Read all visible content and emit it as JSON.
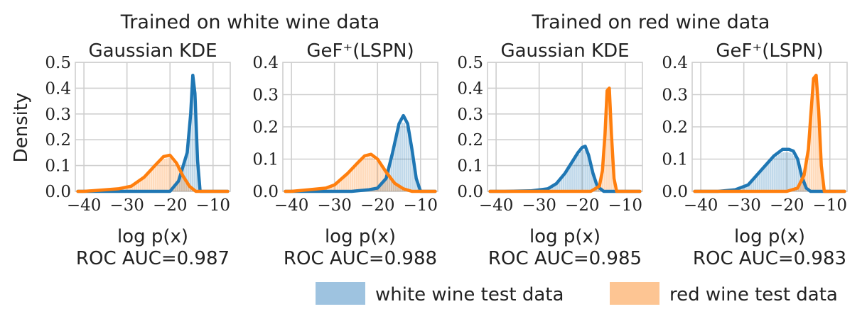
{
  "group_titles": [
    "Trained on white wine data",
    "Trained on red wine data"
  ],
  "ylabel": "Density",
  "legend": {
    "placement": "bottom-right",
    "items": [
      {
        "label": "white wine test data",
        "color": "#9ec3e0"
      },
      {
        "label": "red wine test data",
        "color": "#fdc593"
      }
    ]
  },
  "colors": {
    "white": "#1f77b4",
    "red": "#ff7f0e",
    "grid": "#cfcfcf"
  },
  "chart_data": [
    {
      "type": "area",
      "title": "Gaussian KDE",
      "xlabel": "log p(x)",
      "subtitle": "ROC AUC=0.987",
      "xlim": [
        -42,
        -6
      ],
      "ylim": [
        0,
        0.5
      ],
      "xticks": [
        -40,
        -30,
        -20,
        -10
      ],
      "yticks": [
        0,
        0.1,
        0.2,
        0.3,
        0.4,
        0.5
      ],
      "ytick_labels": [
        "0.0",
        "0.1",
        "0.2",
        "0.3",
        "0.4",
        "0.5"
      ],
      "series": [
        {
          "name": "white wine test data",
          "x": [
            -20,
            -18,
            -16,
            -15.2,
            -14.7,
            -14.2,
            -13.6,
            -13
          ],
          "y": [
            0,
            0.04,
            0.15,
            0.3,
            0.45,
            0.38,
            0.12,
            0
          ]
        },
        {
          "name": "red wine test data",
          "x": [
            -40,
            -36,
            -32,
            -29,
            -26,
            -23.5,
            -21.5,
            -20,
            -18.5,
            -17,
            -15.5,
            -14
          ],
          "y": [
            0,
            0.005,
            0.01,
            0.02,
            0.055,
            0.1,
            0.135,
            0.14,
            0.11,
            0.06,
            0.02,
            0
          ]
        }
      ]
    },
    {
      "type": "area",
      "title": "GeF⁺(LSPN)",
      "xlabel": "log p(x)",
      "subtitle": "ROC AUC=0.988",
      "xlim": [
        -42,
        -6
      ],
      "ylim": [
        0,
        0.4
      ],
      "xticks": [
        -40,
        -30,
        -20,
        -10
      ],
      "yticks": [
        0,
        0.1,
        0.2,
        0.3,
        0.4
      ],
      "ytick_labels": [
        "0.0",
        "0.1",
        "0.2",
        "0.3",
        "0.4"
      ],
      "series": [
        {
          "name": "white wine test data",
          "x": [
            -26,
            -22,
            -20,
            -18,
            -16.5,
            -15,
            -14,
            -13,
            -12,
            -11,
            -10
          ],
          "y": [
            0,
            0.005,
            0.01,
            0.04,
            0.12,
            0.21,
            0.235,
            0.21,
            0.13,
            0.04,
            0
          ]
        },
        {
          "name": "red wine test data",
          "x": [
            -40,
            -36,
            -32,
            -30,
            -27,
            -24.5,
            -23,
            -21.5,
            -20,
            -18,
            -16,
            -14,
            -12
          ],
          "y": [
            0,
            0.005,
            0.01,
            0.02,
            0.055,
            0.09,
            0.11,
            0.115,
            0.1,
            0.06,
            0.025,
            0.008,
            0
          ]
        }
      ]
    },
    {
      "type": "area",
      "title": "Gaussian KDE",
      "xlabel": "log p(x)",
      "subtitle": "ROC AUC=0.985",
      "xlim": [
        -42,
        -6
      ],
      "ylim": [
        0,
        0.5
      ],
      "xticks": [
        -40,
        -30,
        -20,
        -10
      ],
      "yticks": [
        0,
        0.1,
        0.2,
        0.3,
        0.4,
        0.5
      ],
      "ytick_labels": [
        "0.0",
        "0.1",
        "0.2",
        "0.3",
        "0.4",
        "0.5"
      ],
      "series": [
        {
          "name": "white wine test data",
          "x": [
            -38,
            -32,
            -28,
            -26,
            -24,
            -22.5,
            -21,
            -20,
            -19.3,
            -18.5,
            -17.5,
            -16.5,
            -15
          ],
          "y": [
            0,
            0.002,
            0.01,
            0.03,
            0.07,
            0.11,
            0.15,
            0.17,
            0.175,
            0.14,
            0.07,
            0.02,
            0
          ]
        },
        {
          "name": "red wine test data",
          "x": [
            -18,
            -16,
            -15.3,
            -14.7,
            -14.2,
            -13.7,
            -13.2,
            -12.6,
            -12
          ],
          "y": [
            0,
            0.02,
            0.08,
            0.22,
            0.39,
            0.4,
            0.22,
            0.05,
            0
          ]
        }
      ]
    },
    {
      "type": "area",
      "title": "GeF⁺(LSPN)",
      "xlabel": "log p(x)",
      "subtitle": "ROC AUC=0.983",
      "xlim": [
        -42,
        -6
      ],
      "ylim": [
        0,
        0.4
      ],
      "xticks": [
        -40,
        -30,
        -20,
        -10
      ],
      "yticks": [
        0,
        0.1,
        0.2,
        0.3,
        0.4
      ],
      "ytick_labels": [
        "0.0",
        "0.1",
        "0.2",
        "0.3",
        "0.4"
      ],
      "series": [
        {
          "name": "white wine test data",
          "x": [
            -36,
            -32,
            -29,
            -27,
            -25,
            -23,
            -21,
            -19.5,
            -18.5,
            -17.5,
            -16.5,
            -15.5,
            -14.5
          ],
          "y": [
            0,
            0.005,
            0.02,
            0.05,
            0.08,
            0.11,
            0.13,
            0.13,
            0.125,
            0.1,
            0.045,
            0.01,
            0
          ]
        },
        {
          "name": "red wine test data",
          "x": [
            -20,
            -17.5,
            -16,
            -15,
            -14.3,
            -13.8,
            -13.2,
            -12.6,
            -12,
            -11.3
          ],
          "y": [
            0,
            0.01,
            0.05,
            0.13,
            0.26,
            0.35,
            0.36,
            0.25,
            0.08,
            0
          ]
        }
      ]
    }
  ]
}
